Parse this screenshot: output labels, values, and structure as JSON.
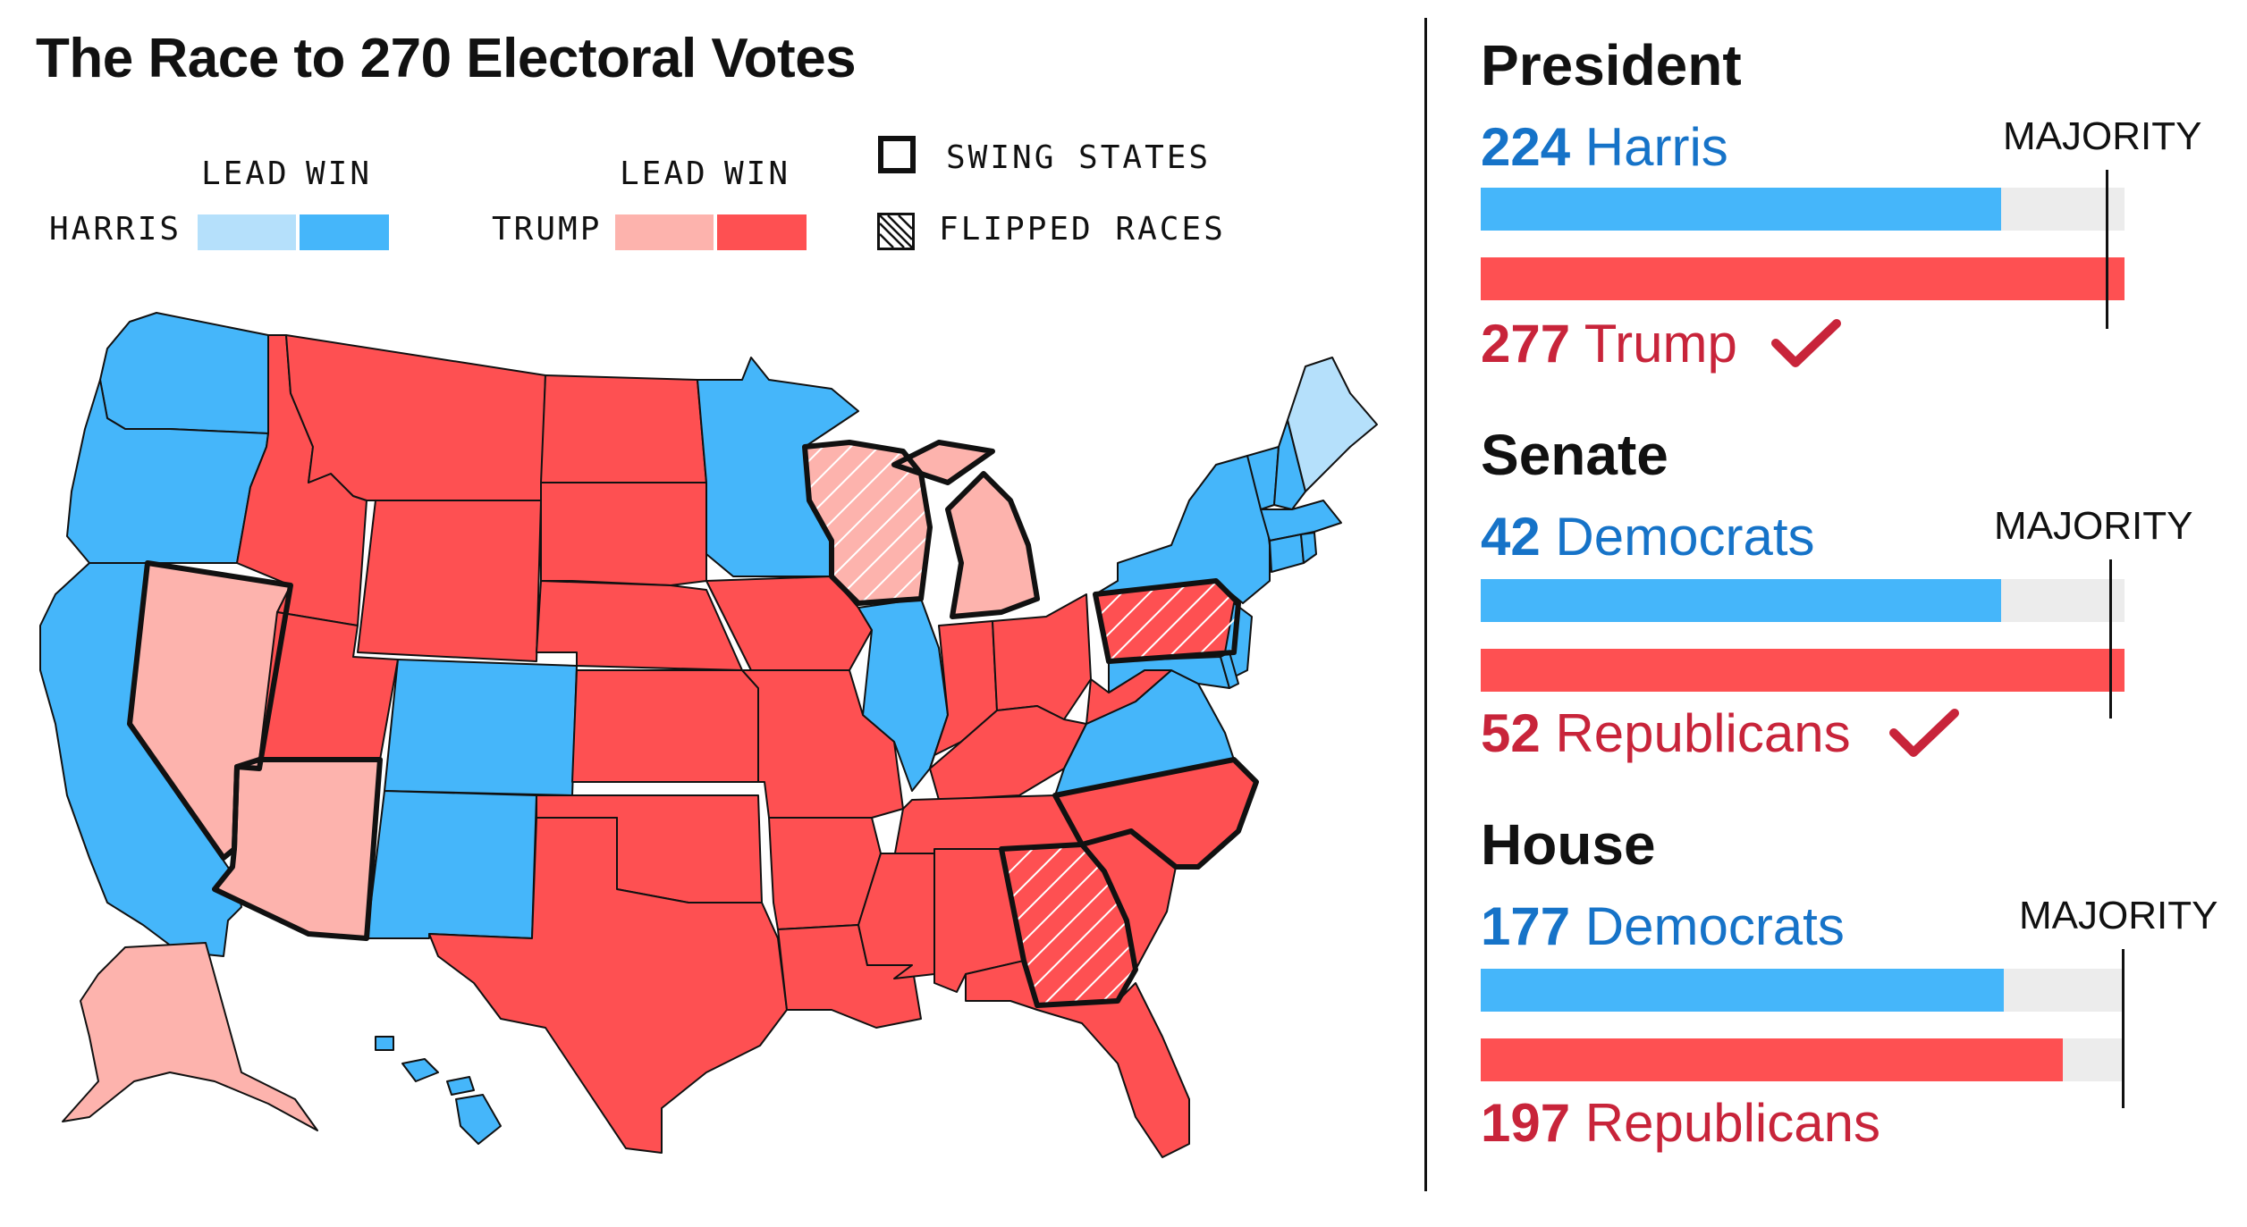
{
  "title": "The Race to 270 Electoral Votes",
  "colors": {
    "dem_lead": "#b5e0fb",
    "dem_win": "#45b6fa",
    "rep_lead": "#fdb3ad",
    "rep_win": "#fe5052",
    "track": "#ececec",
    "dem_text": "#1673c8",
    "rep_text": "#c8243a"
  },
  "legend": {
    "lead_label": "LEAD",
    "win_label": "WIN",
    "harris_label": "HARRIS",
    "trump_label": "TRUMP",
    "swing_label": "SWING STATES",
    "flipped_label": "FLIPPED RACES"
  },
  "map": {
    "states": [
      {
        "name": "WA",
        "status": "dem_win"
      },
      {
        "name": "OR",
        "status": "dem_win"
      },
      {
        "name": "CA",
        "status": "dem_win"
      },
      {
        "name": "NV",
        "status": "rep_lead",
        "swing": true
      },
      {
        "name": "ID",
        "status": "rep_win"
      },
      {
        "name": "MT",
        "status": "rep_win"
      },
      {
        "name": "WY",
        "status": "rep_win"
      },
      {
        "name": "UT",
        "status": "rep_win"
      },
      {
        "name": "AZ",
        "status": "rep_lead",
        "swing": true
      },
      {
        "name": "CO",
        "status": "dem_win"
      },
      {
        "name": "NM",
        "status": "dem_win"
      },
      {
        "name": "ND",
        "status": "rep_win"
      },
      {
        "name": "SD",
        "status": "rep_win"
      },
      {
        "name": "NE",
        "status": "rep_win"
      },
      {
        "name": "KS",
        "status": "rep_win"
      },
      {
        "name": "OK",
        "status": "rep_win"
      },
      {
        "name": "TX",
        "status": "rep_win"
      },
      {
        "name": "MN",
        "status": "dem_win"
      },
      {
        "name": "IA",
        "status": "rep_win"
      },
      {
        "name": "MO",
        "status": "rep_win"
      },
      {
        "name": "AR",
        "status": "rep_win"
      },
      {
        "name": "LA",
        "status": "rep_win"
      },
      {
        "name": "WI",
        "status": "rep_lead",
        "swing": true,
        "flipped": true
      },
      {
        "name": "IL",
        "status": "dem_win"
      },
      {
        "name": "MI",
        "status": "rep_lead",
        "swing": true
      },
      {
        "name": "IN",
        "status": "rep_win"
      },
      {
        "name": "OH",
        "status": "rep_win"
      },
      {
        "name": "KY",
        "status": "rep_win"
      },
      {
        "name": "TN",
        "status": "rep_win"
      },
      {
        "name": "MS",
        "status": "rep_win"
      },
      {
        "name": "AL",
        "status": "rep_win"
      },
      {
        "name": "GA",
        "status": "rep_win",
        "swing": true,
        "flipped": true
      },
      {
        "name": "FL",
        "status": "rep_win"
      },
      {
        "name": "SC",
        "status": "rep_win"
      },
      {
        "name": "NC",
        "status": "rep_win",
        "swing": true
      },
      {
        "name": "VA",
        "status": "dem_win"
      },
      {
        "name": "WV",
        "status": "rep_win"
      },
      {
        "name": "PA",
        "status": "rep_win",
        "swing": true,
        "flipped": true
      },
      {
        "name": "NY",
        "status": "dem_win"
      },
      {
        "name": "NJ",
        "status": "dem_win"
      },
      {
        "name": "MD",
        "status": "dem_win"
      },
      {
        "name": "DE",
        "status": "dem_win"
      },
      {
        "name": "VT",
        "status": "dem_win"
      },
      {
        "name": "NH",
        "status": "dem_win"
      },
      {
        "name": "MA",
        "status": "dem_win"
      },
      {
        "name": "CT",
        "status": "dem_win"
      },
      {
        "name": "RI",
        "status": "dem_win"
      },
      {
        "name": "ME",
        "status": "dem_lead"
      },
      {
        "name": "AK",
        "status": "rep_lead"
      },
      {
        "name": "HI",
        "status": "dem_win"
      }
    ]
  },
  "races": [
    {
      "title": "Senate",
      "dem_count": "42",
      "dem_name": "Democrats",
      "dem_value": 42,
      "rep_count": "52",
      "rep_name": "Republicans",
      "rep_value": 52,
      "total": 52,
      "majority": 51,
      "majority_label": "MAJORITY",
      "winner": "rep"
    }
  ],
  "president": {
    "title": "President",
    "dem_count": "224",
    "dem_name": "Harris",
    "dem_value": 224,
    "rep_count": "277",
    "rep_name": "Trump",
    "rep_value": 277,
    "total": 277,
    "majority": 270,
    "majority_label": "MAJORITY",
    "winner": "rep"
  },
  "senate": {
    "title": "Senate",
    "dem_count": "42",
    "dem_name": "Democrats",
    "dem_value": 42,
    "rep_count": "52",
    "rep_name": "Republicans",
    "rep_value": 52,
    "total": 52,
    "majority": 51,
    "majority_label": "MAJORITY",
    "winner": "rep"
  },
  "house": {
    "title": "House",
    "dem_count": "177",
    "dem_name": "Democrats",
    "dem_value": 177,
    "rep_count": "197",
    "rep_name": "Republicans",
    "rep_value": 197,
    "total": 218,
    "majority": 218,
    "majority_label": "MAJORITY"
  }
}
